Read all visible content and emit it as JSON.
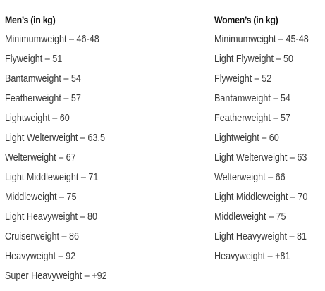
{
  "men": {
    "heading": "Men’s (in kg)",
    "items": [
      "Minimumweight – 46-48",
      "Flyweight – 51",
      "Bantamweight – 54",
      "Featherweight – 57",
      "Lightweight – 60",
      "Light Welterweight – 63,5",
      "Welterweight – 67",
      "Light Middleweight – 71",
      "Middleweight – 75",
      "Light Heavyweight – 80",
      "Cruiserweight – 86",
      "Heavyweight – 92",
      "Super Heavyweight – +92"
    ]
  },
  "women": {
    "heading": "Women’s (in kg)",
    "items": [
      "Minimumweight – 45-48",
      "Light Flyweight – 50",
      "Flyweight – 52",
      "Bantamweight – 54",
      "Featherweight – 57",
      "Lightweight – 60",
      "Light Welterweight – 63",
      "Welterweight – 66",
      "Light Middleweight – 70",
      "Middleweight – 75",
      "Light Heavyweight – 81",
      "Heavyweight – +81"
    ]
  }
}
